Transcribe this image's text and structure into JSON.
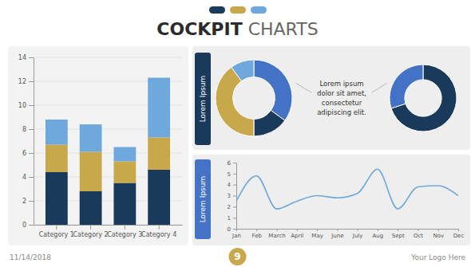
{
  "chart_data": [
    {
      "type": "bar",
      "stacked": true,
      "title": "COCKPIT CHARTS",
      "categories": [
        "Category 1",
        "Category 2",
        "Category 3",
        "Category 4"
      ],
      "series": [
        {
          "color": "#1a3a5c",
          "values": [
            4.4,
            2.8,
            3.5,
            4.6
          ]
        },
        {
          "color": "#c9a84c",
          "values": [
            2.3,
            3.3,
            1.8,
            2.7
          ]
        },
        {
          "color": "#6fa8dc",
          "values": [
            2.1,
            2.3,
            1.2,
            5.0
          ]
        }
      ],
      "ylim": [
        0,
        14
      ],
      "yticks": [
        0,
        2,
        4,
        6,
        8,
        10,
        12,
        14
      ],
      "grid": true,
      "annotations": [
        "11/14/2018",
        "Your Logo Here",
        "9"
      ]
    },
    {
      "type": "donut",
      "values": [
        35,
        15,
        40,
        10
      ],
      "colors": [
        "#4472c4",
        "#1a3a5c",
        "#c9a84c",
        "#6fa8dc"
      ],
      "annotations": [
        "Lorem Ipsum",
        "Lorem ipsum\ndolor sit amet,\nconsectetur\nadipiscing elit."
      ]
    },
    {
      "type": "donut",
      "values": [
        70,
        30
      ],
      "colors": [
        "#1a3a5c",
        "#4472c4"
      ]
    },
    {
      "type": "line",
      "categories": [
        "Jan",
        "Feb",
        "March",
        "April",
        "May",
        "June",
        "July",
        "Aug",
        "Sept",
        "Oct",
        "Nov",
        "Dec"
      ],
      "values": [
        2.5,
        4.8,
        1.8,
        2.5,
        3.0,
        2.8,
        3.2,
        5.4,
        1.8,
        3.8,
        3.9,
        3.0
      ],
      "color": "#6fa8dc",
      "ylim": [
        0,
        6
      ],
      "yticks": [
        0,
        1,
        2,
        3,
        4,
        5,
        6
      ],
      "grid": false,
      "annotations": [
        "Lorem Ipsum"
      ]
    }
  ]
}
